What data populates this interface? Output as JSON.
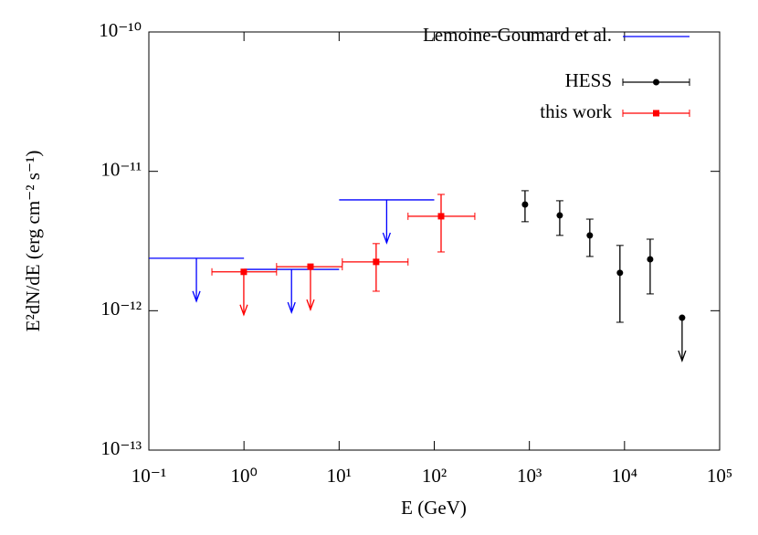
{
  "chart_data": {
    "type": "scatter",
    "x_label": "E (GeV)",
    "y_label": "E²dN/dE (erg cm⁻² s⁻¹)",
    "xscale": "log",
    "yscale": "log",
    "xlim": [
      0.1,
      100000
    ],
    "ylim": [
      1e-13,
      1e-10
    ],
    "xticks": [
      {
        "value": 0.1,
        "label": "10⁻¹"
      },
      {
        "value": 1,
        "label": "10⁰"
      },
      {
        "value": 10,
        "label": "10¹"
      },
      {
        "value": 100,
        "label": "10²"
      },
      {
        "value": 1000,
        "label": "10³"
      },
      {
        "value": 10000,
        "label": "10⁴"
      },
      {
        "value": 100000,
        "label": "10⁵"
      }
    ],
    "yticks": [
      {
        "value": 1e-13,
        "label": "10⁻¹³"
      },
      {
        "value": 1e-12,
        "label": "10⁻¹²"
      },
      {
        "value": 1e-11,
        "label": "10⁻¹¹"
      },
      {
        "value": 1e-10,
        "label": "10⁻¹⁰"
      }
    ],
    "legend": "upper right",
    "series": [
      {
        "name": "Lemoine-Goumard et al.",
        "color": "#0000ff",
        "marker": "none",
        "x": [
          0.316,
          3.16,
          31.6
        ],
        "x_low": [
          0.1,
          1,
          10
        ],
        "x_high": [
          1,
          10,
          100
        ],
        "values": [
          2.38e-12,
          1.98e-12,
          6.24e-12
        ],
        "upper_limit": [
          true,
          true,
          true
        ]
      },
      {
        "name": "HESS",
        "color": "#000000",
        "marker": "circle",
        "x": [
          900,
          2085,
          4316,
          8950,
          18600,
          40300
        ],
        "values": [
          5.78e-12,
          4.83e-12,
          3.47e-12,
          1.87e-12,
          2.34e-12,
          8.9e-13
        ],
        "y_lower": [
          4.35e-12,
          3.47e-12,
          2.45e-12,
          8.26e-13,
          1.32e-12,
          null
        ],
        "y_upper": [
          7.26e-12,
          6.15e-12,
          4.54e-12,
          2.94e-12,
          3.26e-12,
          null
        ],
        "upper_limit": [
          false,
          false,
          false,
          false,
          false,
          true
        ]
      },
      {
        "name": "this work",
        "color": "#ff0000",
        "marker": "square",
        "x": [
          0.995,
          5.0,
          24.5,
          118
        ],
        "x_low": [
          0.46,
          2.2,
          10.8,
          53
        ],
        "x_high": [
          2.2,
          10.8,
          53,
          267
        ],
        "values": [
          1.9e-12,
          2.07e-12,
          2.24e-12,
          4.76e-12
        ],
        "y_lower": [
          null,
          null,
          1.38e-12,
          2.64e-12
        ],
        "y_upper": [
          null,
          null,
          3.03e-12,
          6.83e-12
        ],
        "upper_limit": [
          true,
          true,
          false,
          false
        ]
      }
    ]
  }
}
